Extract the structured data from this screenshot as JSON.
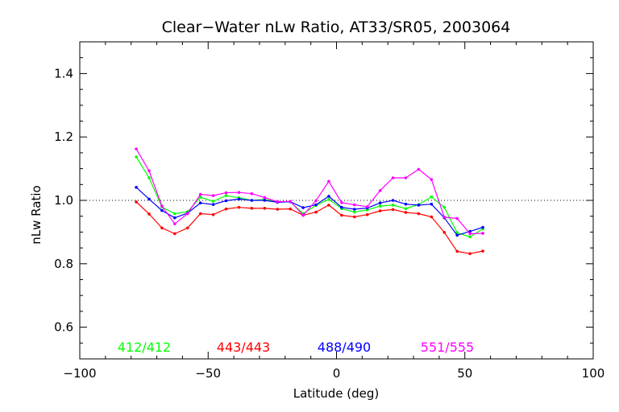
{
  "chart_data": {
    "type": "line",
    "title": "Clear−Water nLw Ratio, AT33/SR05, 2003064",
    "xlabel": "Latitude (deg)",
    "ylabel": "nLw Ratio",
    "xlim": [
      -100,
      100
    ],
    "ylim": [
      0.5,
      1.5
    ],
    "x_ticks": [
      -100,
      -50,
      0,
      50,
      100
    ],
    "x_tick_labels": [
      "−100",
      "−50",
      "0",
      "50",
      "100"
    ],
    "y_ticks": [
      0.6,
      0.8,
      1.0,
      1.2,
      1.4
    ],
    "y_tick_labels": [
      "0.6",
      "0.8",
      "1.0",
      "1.2",
      "1.4"
    ],
    "reference_line": 1.0,
    "grid": false,
    "legend_position": "bottom-inside",
    "x": [
      -78,
      -73,
      -68,
      -63,
      -58,
      -53,
      -48,
      -43,
      -38,
      -33,
      -28,
      -23,
      -18,
      -13,
      -8,
      -3,
      2,
      7,
      12,
      17,
      22,
      27,
      32,
      37,
      42,
      47,
      52,
      57
    ],
    "series": [
      {
        "name": "412/412",
        "color": "#00ff00",
        "values": [
          1.137,
          1.071,
          0.979,
          0.958,
          0.964,
          1.01,
          0.997,
          1.015,
          1.008,
          1.0,
          1.003,
          0.995,
          0.996,
          0.958,
          0.984,
          1.003,
          0.974,
          0.963,
          0.97,
          0.982,
          0.985,
          0.974,
          0.987,
          1.011,
          0.978,
          0.898,
          0.885,
          0.91
        ]
      },
      {
        "name": "443/443",
        "color": "#ff0000",
        "values": [
          0.995,
          0.957,
          0.913,
          0.895,
          0.913,
          0.958,
          0.955,
          0.973,
          0.978,
          0.975,
          0.975,
          0.972,
          0.973,
          0.953,
          0.963,
          0.985,
          0.953,
          0.948,
          0.955,
          0.967,
          0.971,
          0.962,
          0.958,
          0.948,
          0.899,
          0.839,
          0.832,
          0.84
        ]
      },
      {
        "name": "488/490",
        "color": "#0000ff",
        "values": [
          1.041,
          1.004,
          0.968,
          0.945,
          0.96,
          0.992,
          0.987,
          0.999,
          1.004,
          1.0,
          1.0,
          0.994,
          0.996,
          0.977,
          0.986,
          1.013,
          0.978,
          0.972,
          0.976,
          0.992,
          1.0,
          0.988,
          0.985,
          0.988,
          0.945,
          0.89,
          0.902,
          0.915
        ]
      },
      {
        "name": "551/555",
        "color": "#ff00ff",
        "values": [
          1.162,
          1.093,
          0.982,
          0.926,
          0.958,
          1.019,
          1.015,
          1.024,
          1.025,
          1.021,
          1.009,
          0.996,
          0.997,
          0.953,
          0.999,
          1.06,
          0.993,
          0.986,
          0.98,
          1.031,
          1.071,
          1.071,
          1.098,
          1.066,
          0.947,
          0.943,
          0.895,
          0.896
        ]
      }
    ]
  }
}
